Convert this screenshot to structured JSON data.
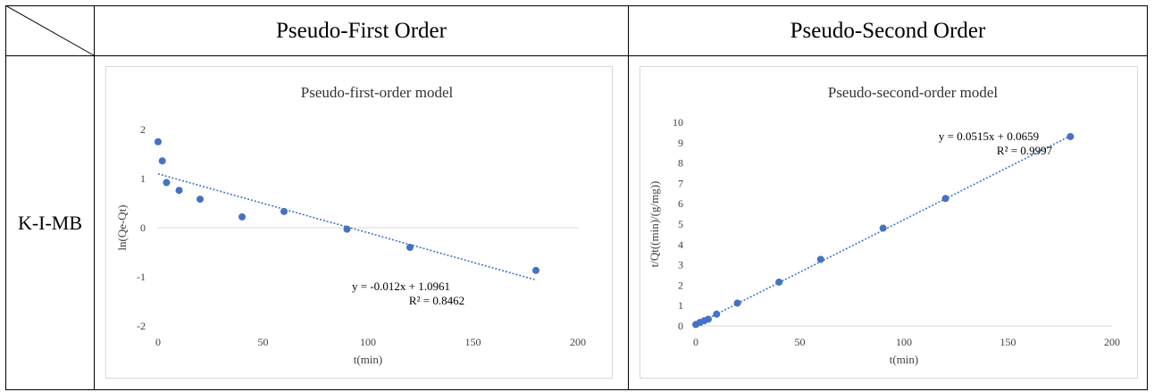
{
  "table": {
    "headers": [
      "Pseudo-First Order",
      "Pseudo-Second Order"
    ],
    "row_label": "K-I-MB"
  },
  "colors": {
    "marker": "#4472C4",
    "trend": "#4472C4",
    "axis": "#d9d9d9",
    "text": "#000000"
  },
  "chart_data": [
    {
      "type": "scatter",
      "title": "Pseudo-first-order model",
      "xlabel": "t(min)",
      "ylabel": "ln(Qe-Qt)",
      "xlim": [
        0,
        200
      ],
      "ylim": [
        -2,
        2
      ],
      "xticks": [
        0,
        50,
        100,
        150,
        200
      ],
      "xtick_labels": [
        "0",
        "50",
        "100",
        "150",
        "200"
      ],
      "yticks": [
        -2,
        -1,
        0,
        1,
        2
      ],
      "ytick_labels": [
        "-2",
        "-1",
        "0",
        "1",
        "2"
      ],
      "grid": false,
      "points": [
        {
          "x": 0,
          "y": 1.75
        },
        {
          "x": 2,
          "y": 1.36
        },
        {
          "x": 4,
          "y": 0.92
        },
        {
          "x": 10,
          "y": 0.76
        },
        {
          "x": 20,
          "y": 0.58
        },
        {
          "x": 40,
          "y": 0.22
        },
        {
          "x": 60,
          "y": 0.33
        },
        {
          "x": 90,
          "y": -0.03
        },
        {
          "x": 120,
          "y": -0.4
        },
        {
          "x": 180,
          "y": -0.87
        }
      ],
      "trendline": {
        "slope": -0.012,
        "intercept": 1.0961,
        "x_range": [
          0,
          180
        ]
      },
      "equation": "y = -0.012x + 1.0961",
      "r2": "R² = 0.8462"
    },
    {
      "type": "scatter",
      "title": "Pseudo-second-order model",
      "xlabel": "t(min)",
      "ylabel": "t/Qt((min)/(g/mg))",
      "xlim": [
        0,
        200
      ],
      "ylim": [
        0,
        10
      ],
      "xticks": [
        0,
        50,
        100,
        150,
        200
      ],
      "xtick_labels": [
        "0",
        "50",
        "100",
        "150",
        "200"
      ],
      "yticks": [
        0,
        1,
        2,
        3,
        4,
        5,
        6,
        7,
        8,
        9,
        10
      ],
      "ytick_labels": [
        "0",
        "1",
        "2",
        "3",
        "4",
        "5",
        "6",
        "7",
        "8",
        "9",
        "10"
      ],
      "grid": false,
      "points": [
        {
          "x": 0,
          "y": 0.07
        },
        {
          "x": 2,
          "y": 0.17
        },
        {
          "x": 4,
          "y": 0.25
        },
        {
          "x": 6,
          "y": 0.33
        },
        {
          "x": 10,
          "y": 0.58
        },
        {
          "x": 20,
          "y": 1.12
        },
        {
          "x": 40,
          "y": 2.15
        },
        {
          "x": 60,
          "y": 3.27
        },
        {
          "x": 90,
          "y": 4.8
        },
        {
          "x": 120,
          "y": 6.26
        },
        {
          "x": 180,
          "y": 9.3
        }
      ],
      "trendline": {
        "slope": 0.0515,
        "intercept": 0.0659,
        "x_range": [
          0,
          180
        ]
      },
      "equation": "y = 0.0515x + 0.0659",
      "r2": "R² = 0.9997"
    }
  ]
}
